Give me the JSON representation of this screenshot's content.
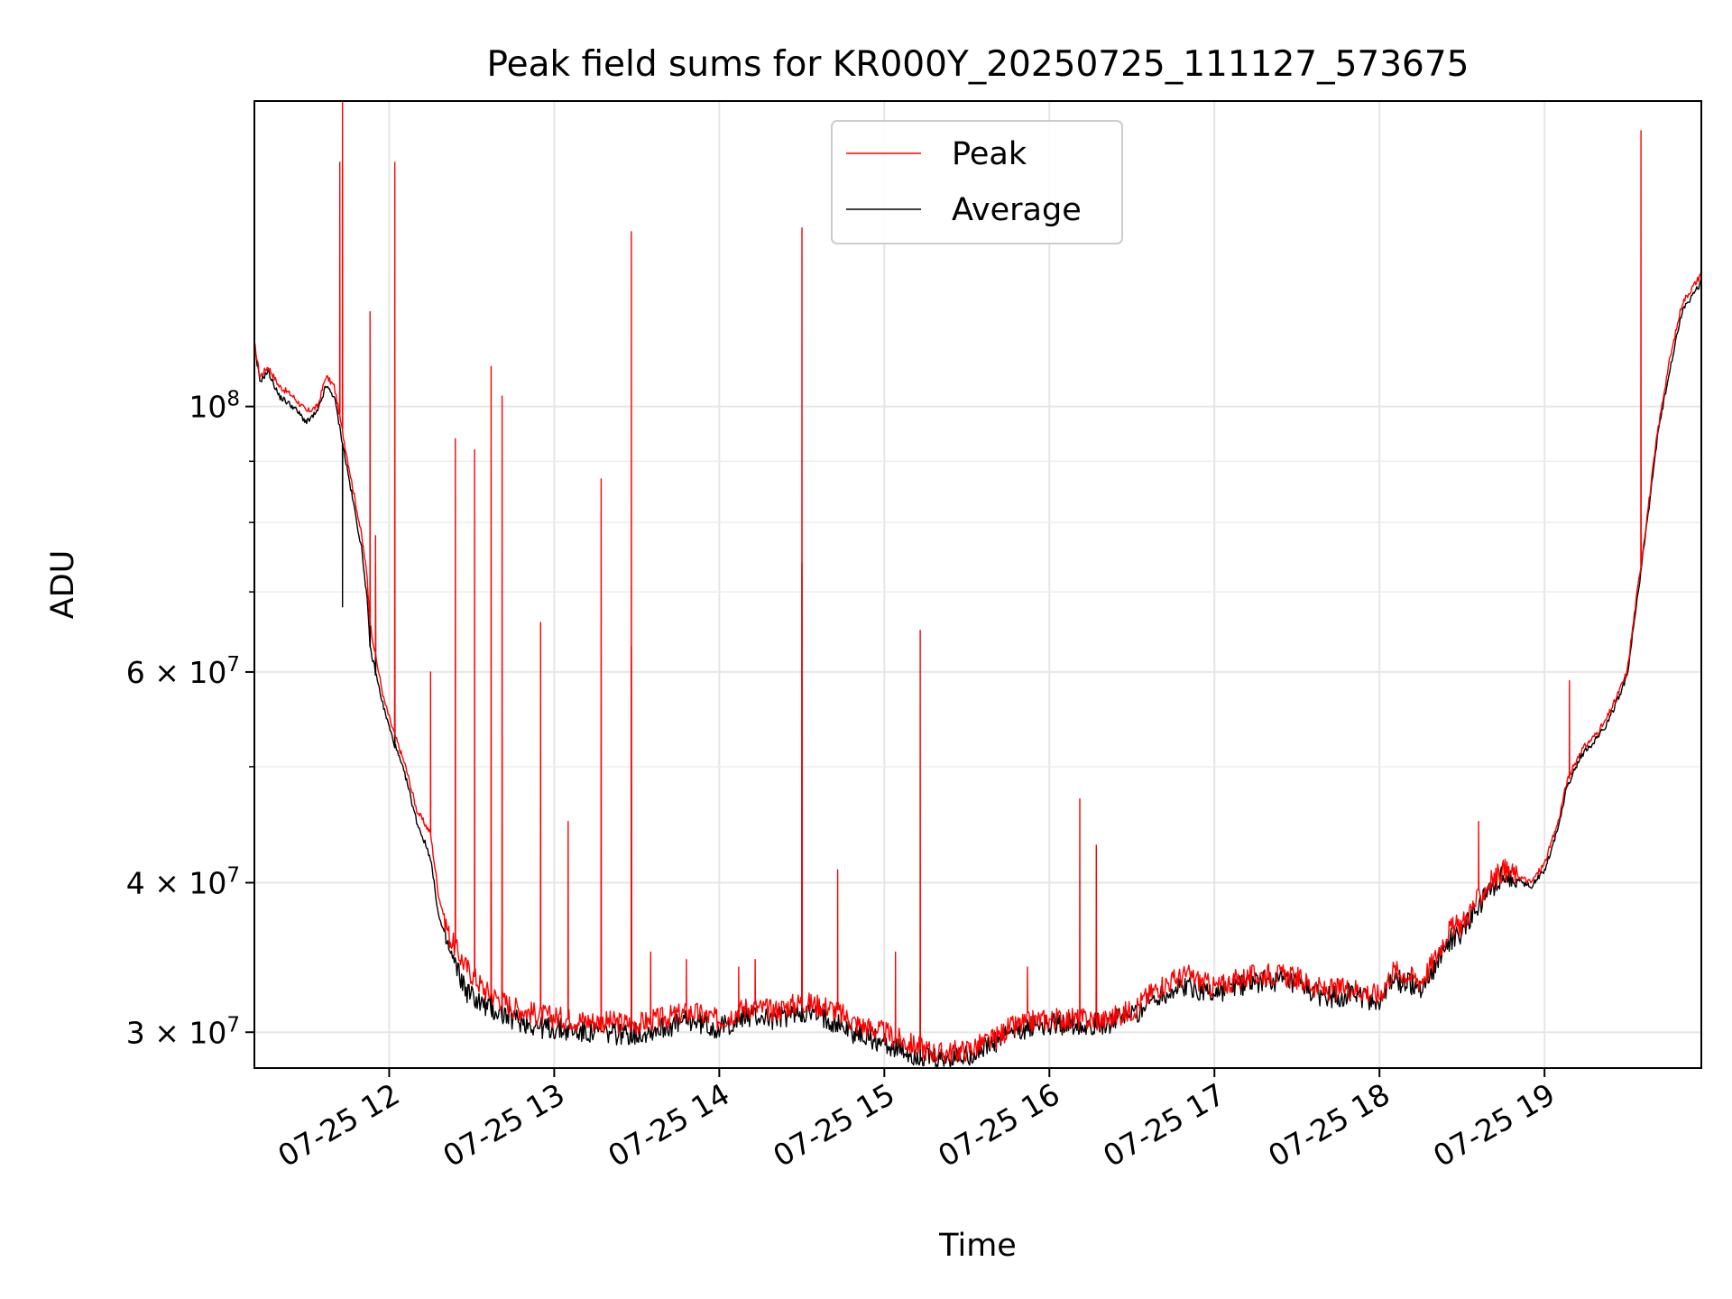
{
  "chart_data": {
    "type": "line",
    "title": "Peak field sums for KR000Y_20250725_111127_573675",
    "xlabel": "Time",
    "ylabel": "ADU",
    "yscale": "log",
    "xlim": [
      "07-25 11:11",
      "07-25 19:57"
    ],
    "ylim": [
      28000000,
      180000000
    ],
    "grid": true,
    "legend_position": "upper center",
    "x_ticks": [
      "07-25 12",
      "07-25 13",
      "07-25 14",
      "07-25 15",
      "07-25 16",
      "07-25 17",
      "07-25 18",
      "07-25 19"
    ],
    "y_major_tick_labels": [
      {
        "value": 30000000,
        "label": "3 × 10^7"
      },
      {
        "value": 40000000,
        "label": "4 × 10^7"
      },
      {
        "value": 60000000,
        "label": "6 × 10^7"
      },
      {
        "value": 100000000,
        "label": "10^8"
      }
    ],
    "y_minor_ticks": [
      50000000,
      70000000,
      80000000,
      90000000
    ],
    "series": [
      {
        "name": "Peak",
        "color": "#ff0000",
        "points": [
          [
            "07-25 11:11",
            113000000
          ],
          [
            "07-25 11:13",
            106000000
          ],
          [
            "07-25 11:16",
            108000000
          ],
          [
            "07-25 11:20",
            104000000
          ],
          [
            "07-25 11:25",
            102000000
          ],
          [
            "07-25 11:30",
            99000000
          ],
          [
            "07-25 11:34",
            100000000
          ],
          [
            "07-25 11:37",
            106000000
          ],
          [
            "07-25 11:40",
            104000000
          ],
          [
            "07-25 11:45",
            90000000
          ],
          [
            "07-25 11:50",
            78000000
          ],
          [
            "07-25 11:52",
            72000000
          ],
          [
            "07-25 11:53",
            66000000
          ],
          [
            "07-25 11:55",
            62000000
          ],
          [
            "07-25 11:58",
            57000000
          ],
          [
            "07-25 12:01",
            54000000
          ],
          [
            "07-25 12:06",
            50000000
          ],
          [
            "07-25 12:10",
            46000000
          ],
          [
            "07-25 12:15",
            44000000
          ],
          [
            "07-25 12:18",
            39000000
          ],
          [
            "07-25 12:22",
            36000000
          ],
          [
            "07-25 12:28",
            34000000
          ],
          [
            "07-25 12:35",
            32500000
          ],
          [
            "07-25 12:45",
            31500000
          ],
          [
            "07-25 12:55",
            31000000
          ],
          [
            "07-25 13:10",
            30700000
          ],
          [
            "07-25 13:30",
            30500000
          ],
          [
            "07-25 13:50",
            31200000
          ],
          [
            "07-25 14:00",
            30700000
          ],
          [
            "07-25 14:10",
            31500000
          ],
          [
            "07-25 14:20",
            31300000
          ],
          [
            "07-25 14:30",
            31800000
          ],
          [
            "07-25 14:40",
            31500000
          ],
          [
            "07-25 14:50",
            30500000
          ],
          [
            "07-25 15:00",
            30000000
          ],
          [
            "07-25 15:05",
            29600000
          ],
          [
            "07-25 15:10",
            29300000
          ],
          [
            "07-25 15:20",
            28800000
          ],
          [
            "07-25 15:30",
            29000000
          ],
          [
            "07-25 15:40",
            29600000
          ],
          [
            "07-25 15:45",
            30200000
          ],
          [
            "07-25 15:55",
            30700000
          ],
          [
            "07-25 16:05",
            30800000
          ],
          [
            "07-25 16:20",
            30700000
          ],
          [
            "07-25 16:30",
            31300000
          ],
          [
            "07-25 16:40",
            32800000
          ],
          [
            "07-25 16:50",
            33500000
          ],
          [
            "07-25 17:00",
            32700000
          ],
          [
            "07-25 17:10",
            33300000
          ],
          [
            "07-25 17:20",
            33600000
          ],
          [
            "07-25 17:30",
            33300000
          ],
          [
            "07-25 17:40",
            32500000
          ],
          [
            "07-25 17:50",
            32700000
          ],
          [
            "07-25 18:00",
            32200000
          ],
          [
            "07-25 18:05",
            33800000
          ],
          [
            "07-25 18:10",
            33500000
          ],
          [
            "07-25 18:15",
            33100000
          ],
          [
            "07-25 18:20",
            34500000
          ],
          [
            "07-25 18:25",
            36500000
          ],
          [
            "07-25 18:30",
            37000000
          ],
          [
            "07-25 18:35",
            38500000
          ],
          [
            "07-25 18:40",
            40000000
          ],
          [
            "07-25 18:45",
            41000000
          ],
          [
            "07-25 18:50",
            40600000
          ],
          [
            "07-25 18:55",
            40000000
          ],
          [
            "07-25 19:00",
            41500000
          ],
          [
            "07-25 19:05",
            45000000
          ],
          [
            "07-25 19:08",
            48500000
          ],
          [
            "07-25 19:13",
            51500000
          ],
          [
            "07-25 19:18",
            53000000
          ],
          [
            "07-25 19:22",
            54500000
          ],
          [
            "07-25 19:26",
            57000000
          ],
          [
            "07-25 19:30",
            60000000
          ],
          [
            "07-25 19:33",
            68000000
          ],
          [
            "07-25 19:37",
            80000000
          ],
          [
            "07-25 19:41",
            95000000
          ],
          [
            "07-25 19:45",
            108000000
          ],
          [
            "07-25 19:50",
            122000000
          ],
          [
            "07-25 19:53",
            125000000
          ],
          [
            "07-25 19:56",
            128000000
          ],
          [
            "07-25 19:57",
            130000000
          ]
        ],
        "spikes": [
          [
            "07-25 11:42",
            160000000
          ],
          [
            "07-25 11:43",
            180000000
          ],
          [
            "07-25 11:53",
            120000000
          ],
          [
            "07-25 11:55",
            78000000
          ],
          [
            "07-25 12:02",
            160000000
          ],
          [
            "07-25 12:15",
            60000000
          ],
          [
            "07-25 12:24",
            94000000
          ],
          [
            "07-25 12:31",
            92000000
          ],
          [
            "07-25 12:37",
            108000000
          ],
          [
            "07-25 12:41",
            102000000
          ],
          [
            "07-25 12:55",
            66000000
          ],
          [
            "07-25 13:05",
            45000000
          ],
          [
            "07-25 13:17",
            87000000
          ],
          [
            "07-25 13:28",
            140000000
          ],
          [
            "07-25 13:35",
            35000000
          ],
          [
            "07-25 13:48",
            34500000
          ],
          [
            "07-25 14:07",
            34000000
          ],
          [
            "07-25 14:13",
            34500000
          ],
          [
            "07-25 14:30",
            141000000
          ],
          [
            "07-25 14:43",
            41000000
          ],
          [
            "07-25 15:04",
            35000000
          ],
          [
            "07-25 15:13",
            65000000
          ],
          [
            "07-25 15:52",
            34000000
          ],
          [
            "07-25 16:11",
            47000000
          ],
          [
            "07-25 16:17",
            43000000
          ],
          [
            "07-25 18:36",
            45000000
          ],
          [
            "07-25 19:09",
            59000000
          ],
          [
            "07-25 19:35",
            170000000
          ]
        ]
      },
      {
        "name": "Average",
        "color": "#000000",
        "points": [
          [
            "07-25 11:11",
            112000000
          ],
          [
            "07-25 11:13",
            105000000
          ],
          [
            "07-25 11:16",
            107000000
          ],
          [
            "07-25 11:20",
            102000000
          ],
          [
            "07-25 11:25",
            100000000
          ],
          [
            "07-25 11:30",
            97000000
          ],
          [
            "07-25 11:34",
            99000000
          ],
          [
            "07-25 11:37",
            104000000
          ],
          [
            "07-25 11:40",
            102000000
          ],
          [
            "07-25 11:45",
            88000000
          ],
          [
            "07-25 11:50",
            76000000
          ],
          [
            "07-25 11:52",
            69000000
          ],
          [
            "07-25 11:53",
            63000000
          ],
          [
            "07-25 11:55",
            60000000
          ],
          [
            "07-25 11:58",
            56000000
          ],
          [
            "07-25 12:01",
            53000000
          ],
          [
            "07-25 12:06",
            49000000
          ],
          [
            "07-25 12:10",
            45000000
          ],
          [
            "07-25 12:15",
            42000000
          ],
          [
            "07-25 12:18",
            37500000
          ],
          [
            "07-25 12:22",
            35000000
          ],
          [
            "07-25 12:28",
            32500000
          ],
          [
            "07-25 12:35",
            31500000
          ],
          [
            "07-25 12:45",
            30800000
          ],
          [
            "07-25 12:55",
            30300000
          ],
          [
            "07-25 13:10",
            30000000
          ],
          [
            "07-25 13:30",
            29900000
          ],
          [
            "07-25 13:50",
            30700000
          ],
          [
            "07-25 14:00",
            30200000
          ],
          [
            "07-25 14:10",
            31000000
          ],
          [
            "07-25 14:20",
            30800000
          ],
          [
            "07-25 14:30",
            31200000
          ],
          [
            "07-25 14:40",
            30800000
          ],
          [
            "07-25 14:50",
            29900000
          ],
          [
            "07-25 15:00",
            29400000
          ],
          [
            "07-25 15:05",
            29000000
          ],
          [
            "07-25 15:10",
            28700000
          ],
          [
            "07-25 15:20",
            28400000
          ],
          [
            "07-25 15:30",
            28700000
          ],
          [
            "07-25 15:40",
            29300000
          ],
          [
            "07-25 15:45",
            29900000
          ],
          [
            "07-25 15:55",
            30400000
          ],
          [
            "07-25 16:05",
            30500000
          ],
          [
            "07-25 16:20",
            30500000
          ],
          [
            "07-25 16:30",
            31000000
          ],
          [
            "07-25 16:40",
            32200000
          ],
          [
            "07-25 16:50",
            32800000
          ],
          [
            "07-25 17:00",
            32300000
          ],
          [
            "07-25 17:10",
            32900000
          ],
          [
            "07-25 17:20",
            33200000
          ],
          [
            "07-25 17:30",
            32800000
          ],
          [
            "07-25 17:40",
            32100000
          ],
          [
            "07-25 17:50",
            32300000
          ],
          [
            "07-25 18:00",
            31800000
          ],
          [
            "07-25 18:05",
            33200000
          ],
          [
            "07-25 18:10",
            33000000
          ],
          [
            "07-25 18:15",
            32700000
          ],
          [
            "07-25 18:20",
            34000000
          ],
          [
            "07-25 18:25",
            35800000
          ],
          [
            "07-25 18:30",
            36400000
          ],
          [
            "07-25 18:35",
            37800000
          ],
          [
            "07-25 18:40",
            39400000
          ],
          [
            "07-25 18:45",
            40500000
          ],
          [
            "07-25 18:50",
            40200000
          ],
          [
            "07-25 18:55",
            39700000
          ],
          [
            "07-25 19:00",
            41000000
          ],
          [
            "07-25 19:05",
            44500000
          ],
          [
            "07-25 19:08",
            48000000
          ],
          [
            "07-25 19:13",
            51000000
          ],
          [
            "07-25 19:18",
            52500000
          ],
          [
            "07-25 19:22",
            54000000
          ],
          [
            "07-25 19:26",
            56500000
          ],
          [
            "07-25 19:30",
            59500000
          ],
          [
            "07-25 19:33",
            67000000
          ],
          [
            "07-25 19:37",
            79000000
          ],
          [
            "07-25 19:41",
            94000000
          ],
          [
            "07-25 19:45",
            106000000
          ],
          [
            "07-25 19:50",
            120000000
          ],
          [
            "07-25 19:53",
            123000000
          ],
          [
            "07-25 19:56",
            126000000
          ],
          [
            "07-25 19:57",
            128000000
          ]
        ],
        "spikes": [
          [
            "07-25 11:43",
            68000000
          ],
          [
            "07-25 11:53",
            72000000
          ],
          [
            "07-25 11:55",
            74000000
          ],
          [
            "07-25 12:02",
            60000000
          ],
          [
            "07-25 12:37",
            40000000
          ],
          [
            "07-25 12:41",
            36000000
          ],
          [
            "07-25 13:28",
            63000000
          ],
          [
            "07-25 14:30",
            74000000
          ],
          [
            "07-25 15:13",
            33000000
          ],
          [
            "07-25 16:17",
            37000000
          ]
        ]
      }
    ]
  }
}
